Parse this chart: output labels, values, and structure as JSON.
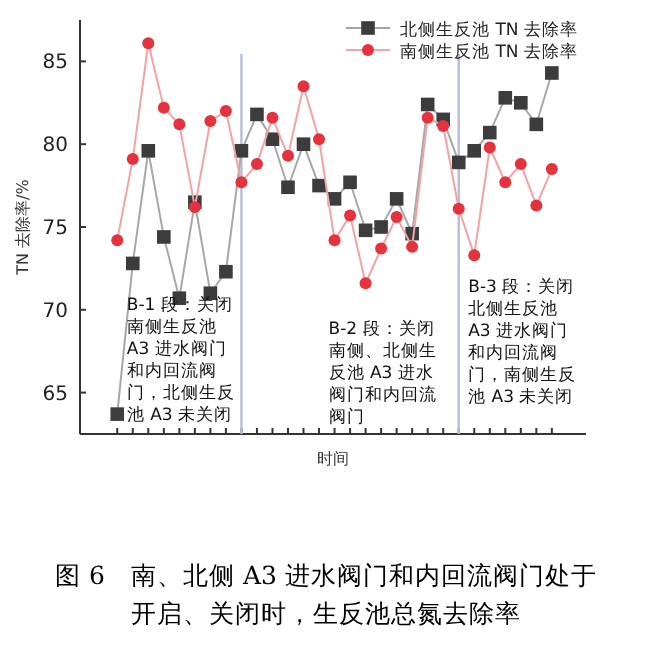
{
  "chart_data": {
    "type": "line",
    "title": "图 6　南、北侧 A3 进水阀门和内回流阀门处于开启、关闭时，生反池总氮去除率",
    "xlabel": "时间",
    "ylabel": "TN 去除率/%",
    "categories": [
      null,
      null,
      null,
      null,
      null,
      null,
      null,
      null,
      null,
      null,
      null,
      null,
      null,
      null,
      null,
      null,
      null,
      null,
      null,
      null,
      null,
      null,
      null,
      null,
      null,
      null,
      null,
      null,
      null
    ],
    "series": [
      {
        "name": "北侧生反池 TN 去除率",
        "color": "#3c3c3c",
        "marker": "square",
        "values": [
          63.7,
          72.8,
          79.6,
          74.4,
          70.7,
          76.5,
          71.0,
          72.3,
          79.6,
          81.8,
          80.3,
          77.4,
          80.0,
          77.5,
          76.7,
          77.7,
          74.8,
          75.0,
          76.7,
          74.6,
          82.4,
          81.5,
          78.9,
          79.6,
          80.7,
          82.8,
          82.5,
          81.2,
          84.3
        ]
      },
      {
        "name": "南侧生反池 TN 去除率",
        "color": "#e5323c",
        "marker": "circle",
        "values": [
          74.2,
          79.1,
          86.1,
          82.2,
          81.2,
          76.2,
          81.4,
          82.0,
          77.7,
          78.8,
          81.6,
          79.3,
          83.5,
          80.3,
          74.2,
          75.7,
          71.6,
          73.7,
          75.6,
          73.8,
          81.6,
          81.1,
          76.1,
          73.3,
          79.8,
          77.7,
          78.8,
          76.3,
          78.5
        ]
      }
    ],
    "ylim": [
      62.5,
      87.5
    ],
    "yticks": [
      65,
      70,
      75,
      80,
      85
    ],
    "annotations": [
      "B-1 段：关闭南侧生反池 A3 进水阀门和内回流阀门，北侧生反池 A3 未关闭",
      "B-2 段：关闭南侧、北侧生反池 A3 进水阀门和内回流阀门",
      "B-3 段：关闭北侧生反池 A3 进水阀门和内回流阀门，南侧生反池 A3 未关闭"
    ],
    "legend": "top right",
    "grid": false
  }
}
